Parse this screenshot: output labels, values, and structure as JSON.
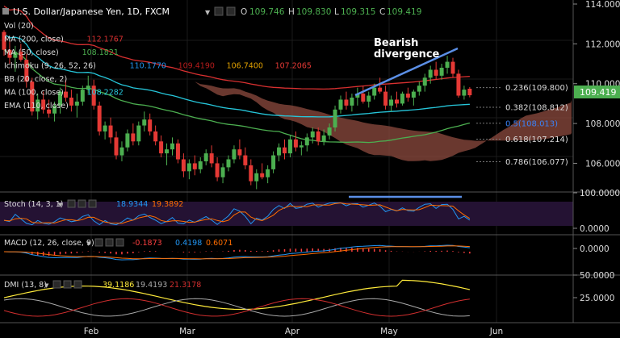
{
  "header": {
    "symbol": "U.S. Dollar/Japanese Yen, 1D, FXCM",
    "open_label": "O",
    "open": "109.746",
    "high_label": "H",
    "high": "109.830",
    "low_label": "L",
    "low": "109.315",
    "close_label": "C",
    "close": "109.419"
  },
  "indicators": [
    {
      "label": "Vol (20)",
      "values": [],
      "colors": []
    },
    {
      "label": "MA (200, close)",
      "values": [
        "112.1767"
      ],
      "colors": [
        "#d83030"
      ]
    },
    {
      "label": "MA (50, close)",
      "values": [
        "108.1821"
      ],
      "colors": [
        "#4caf50"
      ]
    },
    {
      "label": "Ichimoku (9, 26, 52, 26)",
      "values": [
        "110.1770",
        "109.4190",
        "106.7400",
        "107.2065"
      ],
      "colors": [
        "#2196f3",
        "#b71c1c",
        "#e0a000",
        "#e53935"
      ]
    },
    {
      "label": "BB (20, close, 2)",
      "values": [],
      "colors": []
    },
    {
      "label": "MA (100, close)",
      "values": [
        "108.2282"
      ],
      "colors": [
        "#26c6da"
      ]
    },
    {
      "label": "EMA (110, close)",
      "values": [],
      "colors": []
    }
  ],
  "annotation": {
    "line1": "Bearish",
    "line2": "divergence"
  },
  "fib_levels": [
    {
      "label": "0.236(109.800)",
      "value": 109.8,
      "color": "#dddddd"
    },
    {
      "label": "0.382(108.812)",
      "value": 108.812,
      "color": "#dddddd"
    },
    {
      "label": "0.5(108.013)",
      "value": 108.013,
      "color": "#3b82f6"
    },
    {
      "label": "0.618(107.214)",
      "value": 107.214,
      "color": "#dddddd"
    },
    {
      "label": "0.786(106.077)",
      "value": 106.077,
      "color": "#dddddd"
    }
  ],
  "price_tag": "109.419",
  "stoch": {
    "label": "Stoch (14, 3, 1)",
    "k": "18.9344",
    "d": "19.3892",
    "k_color": "#2196f3",
    "d_color": "#ff6d00"
  },
  "macd": {
    "label": "MACD (12, 26, close, 9)",
    "hist": "-0.1873",
    "macd": "0.4198",
    "signal": "0.6071",
    "hist_color": "#ff4040",
    "macd_color": "#2196f3",
    "signal_color": "#ff6d00"
  },
  "dmi": {
    "label": "DMI (13, 8)",
    "adx": "39.1186",
    "plus_di": "19.4193",
    "minus_di": "21.3178",
    "adx_color": "#ffeb3b",
    "plus_color": "#aaaaaa",
    "minus_color": "#d32f2f"
  },
  "chart_data": {
    "type": "candlestick",
    "title": "U.S. Dollar/Japanese Yen, 1D, FXCM",
    "x_ticks": [
      "Feb",
      "Mar",
      "Apr",
      "May",
      "Jun"
    ],
    "main_axis": {
      "ticks": [
        "114.000",
        "112.000",
        "110.000",
        "108.000",
        "106.000"
      ],
      "ylim": [
        104.6,
        114.0
      ]
    },
    "stoch_axis": {
      "ticks": [
        "100.0000",
        "0.0000"
      ],
      "ylim": [
        0,
        100
      ]
    },
    "macd_axis": {
      "ticks": [
        "0.0000"
      ]
    },
    "dmi_axis": {
      "ticks": [
        "50.0000",
        "25.0000"
      ],
      "ylim": [
        6,
        50
      ]
    },
    "candles": [
      [
        112.6,
        112.7,
        111.4,
        111.7
      ],
      [
        111.7,
        112.2,
        111.0,
        111.3
      ],
      [
        111.3,
        111.9,
        110.6,
        111.6
      ],
      [
        111.6,
        112.0,
        111.1,
        111.2
      ],
      [
        111.2,
        111.5,
        109.8,
        110.1
      ],
      [
        110.1,
        110.3,
        108.4,
        108.6
      ],
      [
        108.6,
        109.5,
        108.2,
        109.2
      ],
      [
        109.2,
        109.6,
        108.5,
        108.7
      ],
      [
        108.7,
        109.2,
        108.3,
        108.5
      ],
      [
        108.5,
        109.1,
        108.1,
        108.9
      ],
      [
        108.9,
        109.8,
        108.5,
        109.6
      ],
      [
        109.6,
        110.2,
        109.1,
        109.3
      ],
      [
        109.3,
        109.7,
        108.6,
        108.9
      ],
      [
        108.9,
        109.5,
        108.3,
        109.1
      ],
      [
        109.1,
        109.9,
        108.9,
        109.7
      ],
      [
        109.7,
        110.4,
        109.5,
        109.9
      ],
      [
        109.9,
        110.2,
        108.7,
        108.9
      ],
      [
        108.9,
        109.1,
        107.4,
        107.6
      ],
      [
        107.6,
        108.1,
        107.2,
        107.9
      ],
      [
        107.9,
        108.3,
        107.0,
        107.3
      ],
      [
        107.3,
        107.6,
        106.2,
        106.4
      ],
      [
        106.4,
        107.1,
        106.1,
        106.8
      ],
      [
        106.8,
        107.7,
        106.6,
        107.5
      ],
      [
        107.5,
        108.0,
        106.9,
        107.1
      ],
      [
        107.1,
        108.1,
        106.9,
        107.9
      ],
      [
        107.9,
        108.6,
        107.6,
        108.2
      ],
      [
        108.2,
        108.5,
        107.4,
        107.6
      ],
      [
        107.6,
        107.9,
        106.9,
        107.1
      ],
      [
        107.1,
        107.4,
        106.3,
        106.5
      ],
      [
        106.5,
        107.0,
        105.9,
        106.7
      ],
      [
        106.7,
        107.3,
        106.4,
        107.0
      ],
      [
        107.0,
        107.2,
        106.0,
        106.2
      ],
      [
        106.2,
        106.5,
        105.3,
        105.6
      ],
      [
        105.6,
        106.2,
        105.2,
        106.0
      ],
      [
        106.0,
        106.4,
        105.4,
        105.7
      ],
      [
        105.7,
        106.3,
        105.5,
        106.1
      ],
      [
        106.1,
        106.7,
        105.9,
        106.5
      ],
      [
        106.5,
        106.9,
        105.8,
        106.0
      ],
      [
        106.0,
        106.3,
        105.1,
        105.3
      ],
      [
        105.3,
        106.0,
        105.0,
        105.8
      ],
      [
        105.8,
        106.4,
        105.6,
        106.2
      ],
      [
        106.2,
        106.9,
        106.0,
        106.7
      ],
      [
        106.7,
        107.2,
        106.2,
        106.4
      ],
      [
        106.4,
        106.8,
        105.7,
        105.9
      ],
      [
        105.9,
        106.2,
        104.9,
        105.1
      ],
      [
        105.1,
        105.7,
        104.7,
        105.5
      ],
      [
        105.5,
        106.0,
        105.2,
        105.3
      ],
      [
        105.3,
        105.9,
        105.0,
        105.7
      ],
      [
        105.7,
        106.6,
        105.5,
        106.4
      ],
      [
        106.4,
        107.0,
        106.1,
        106.8
      ],
      [
        106.8,
        107.2,
        106.2,
        106.5
      ],
      [
        106.5,
        107.4,
        106.3,
        107.2
      ],
      [
        107.2,
        107.6,
        106.6,
        106.8
      ],
      [
        106.8,
        107.1,
        106.4,
        106.9
      ],
      [
        106.9,
        107.5,
        106.6,
        107.3
      ],
      [
        107.3,
        107.8,
        107.0,
        107.6
      ],
      [
        107.6,
        107.8,
        106.9,
        107.1
      ],
      [
        107.1,
        107.7,
        106.9,
        107.4
      ],
      [
        107.4,
        108.0,
        107.2,
        107.8
      ],
      [
        107.8,
        108.9,
        107.6,
        108.7
      ],
      [
        108.7,
        109.4,
        108.5,
        109.2
      ],
      [
        109.2,
        109.6,
        108.7,
        108.9
      ],
      [
        108.9,
        109.5,
        108.6,
        109.3
      ],
      [
        109.3,
        109.8,
        108.9,
        109.5
      ],
      [
        109.5,
        109.9,
        109.0,
        109.1
      ],
      [
        109.1,
        109.6,
        108.8,
        109.4
      ],
      [
        109.4,
        110.0,
        109.2,
        109.8
      ],
      [
        109.8,
        110.3,
        109.5,
        109.6
      ],
      [
        109.6,
        109.9,
        108.7,
        108.9
      ],
      [
        108.9,
        109.4,
        108.6,
        109.2
      ],
      [
        109.2,
        109.6,
        108.8,
        109.0
      ],
      [
        109.0,
        109.6,
        108.9,
        109.5
      ],
      [
        109.5,
        109.8,
        109.1,
        109.3
      ],
      [
        109.3,
        109.7,
        108.9,
        109.6
      ],
      [
        109.6,
        110.1,
        109.4,
        109.9
      ],
      [
        109.9,
        110.5,
        109.6,
        110.3
      ],
      [
        110.3,
        110.9,
        110.0,
        110.7
      ],
      [
        110.7,
        111.1,
        110.2,
        110.4
      ],
      [
        110.4,
        111.0,
        110.2,
        110.8
      ],
      [
        110.8,
        111.4,
        110.5,
        111.1
      ],
      [
        111.1,
        111.3,
        110.3,
        110.5
      ],
      [
        110.5,
        110.7,
        109.3,
        109.4
      ],
      [
        109.4,
        109.9,
        109.2,
        109.7
      ],
      [
        109.746,
        109.83,
        109.315,
        109.419
      ]
    ]
  }
}
